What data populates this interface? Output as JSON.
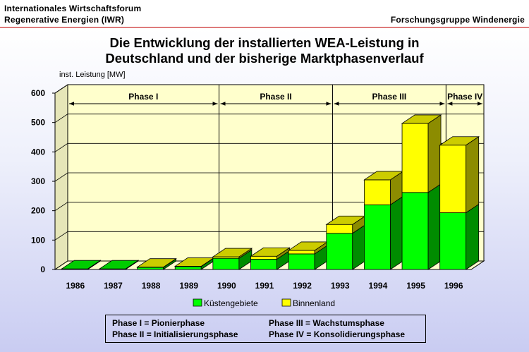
{
  "header": {
    "left_line1": "Internationales Wirtschaftsforum",
    "left_line2": "Regenerative Energien (IWR)",
    "right": "Forschungsgruppe Windenergie"
  },
  "chart_data": {
    "type": "bar",
    "stacked": true,
    "three_d": true,
    "title_line1": "Die Entwicklung der installierten WEA-Leistung in",
    "title_line2": "Deutschland und der bisherige Marktphasenverlauf",
    "ylabel": "inst. Leistung [MW]",
    "xlabel": "",
    "ylim": [
      0,
      600
    ],
    "yticks": [
      0,
      100,
      200,
      300,
      400,
      500,
      600
    ],
    "grid": true,
    "categories": [
      "1986",
      "1987",
      "1988",
      "1989",
      "1990",
      "1991",
      "1992",
      "1993",
      "1994",
      "1995",
      "1996"
    ],
    "series": [
      {
        "name": "Küstengebiete",
        "color": "#00ff00",
        "values": [
          2,
          2,
          7,
          10,
          38,
          35,
          53,
          123,
          220,
          262,
          193
        ]
      },
      {
        "name": "Binnenland",
        "color": "#ffff00",
        "values": [
          0,
          0,
          1,
          1,
          5,
          10,
          12,
          30,
          85,
          235,
          230
        ]
      }
    ],
    "legend_position": "bottom",
    "plot_background": "#ffffcc",
    "phases": [
      {
        "label": "Phase I",
        "from_index": 0,
        "to_index": 3
      },
      {
        "label": "Phase II",
        "from_index": 4,
        "to_index": 6
      },
      {
        "label": "Phase III",
        "from_index": 7,
        "to_index": 9
      },
      {
        "label": "Phase IV",
        "from_index": 10,
        "to_index": 10
      }
    ]
  },
  "phase_legend": {
    "p1": "Phase I  = Pionierphase",
    "p2": "Phase II = Initialisierungsphase",
    "p3": "Phase III = Wachstumsphase",
    "p4": "Phase IV  = Konsolidierungsphase"
  }
}
